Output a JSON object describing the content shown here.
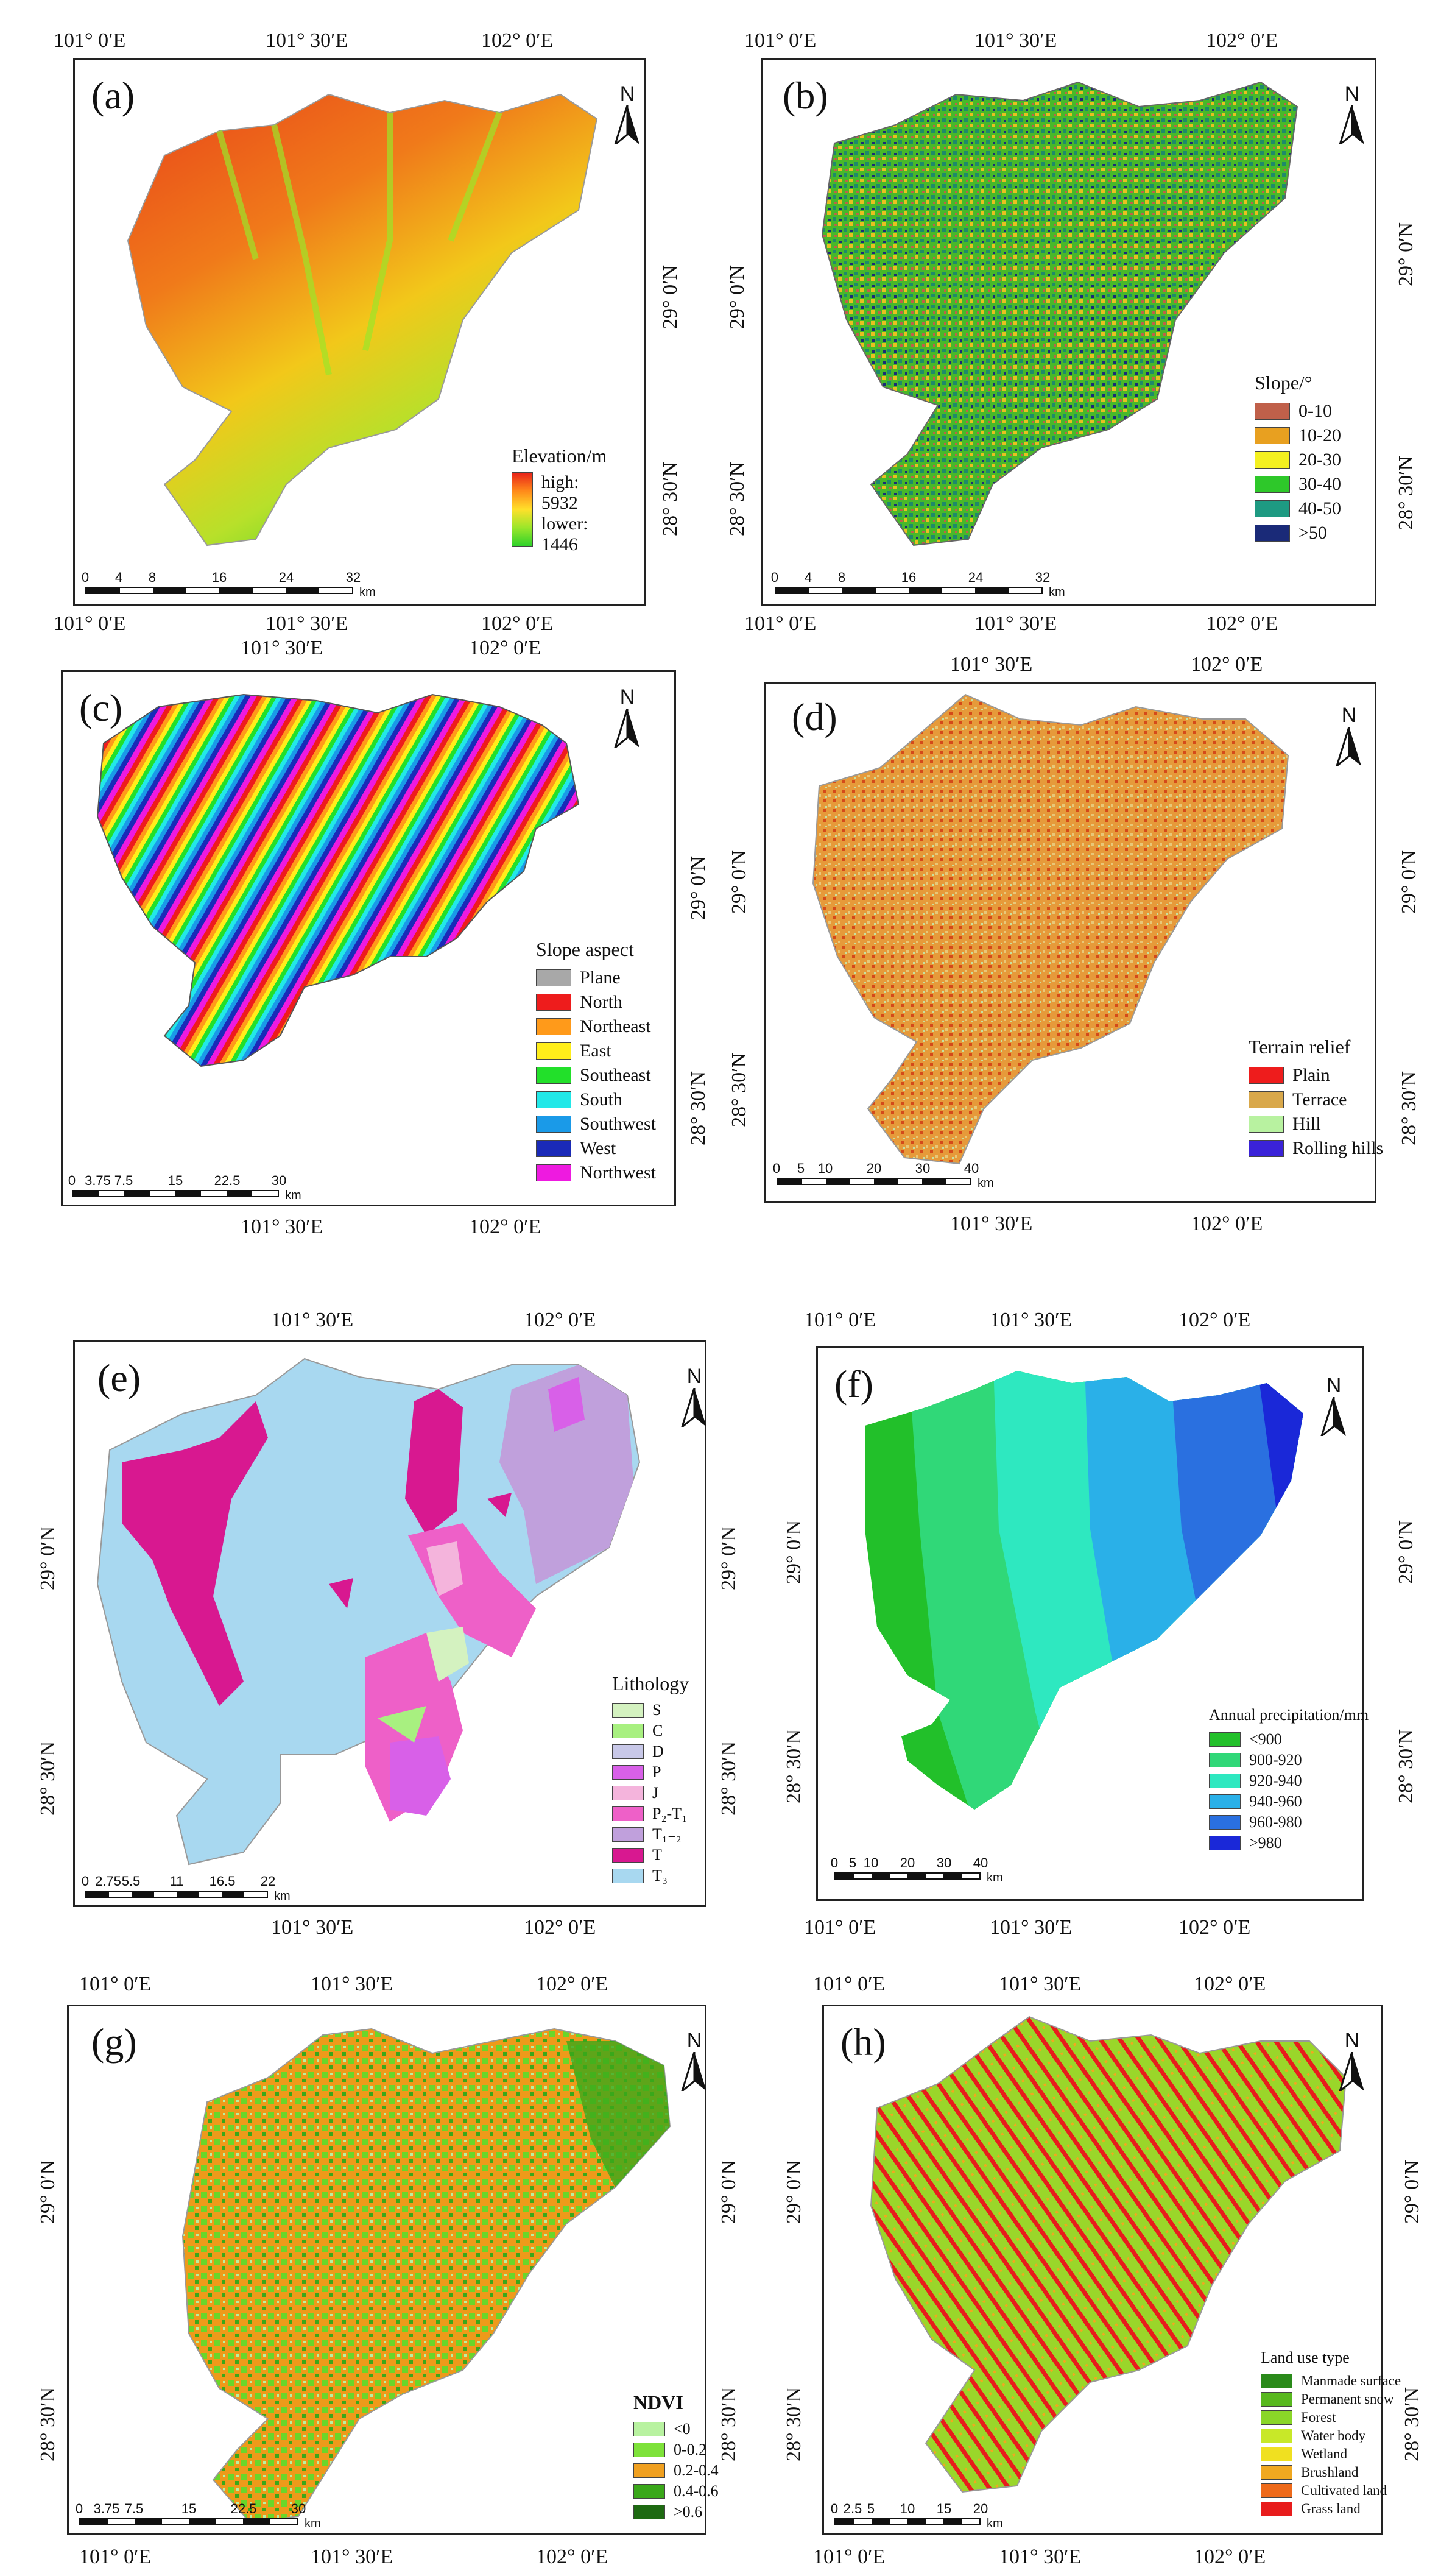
{
  "north_label": "N",
  "panels": [
    {
      "id": "a",
      "label": "(a)",
      "top_coords": [
        "101° 0′E",
        "101° 30′E",
        "102° 0′E"
      ],
      "bottom_coords": [
        "101° 0′E",
        "101° 30′E",
        "102° 0′E"
      ],
      "right_coords": [
        "29° 0′N",
        "28° 30′N"
      ],
      "legend": {
        "title": "Elevation/m",
        "high": "high: 5932",
        "low": "lower: 1446"
      },
      "scale": [
        "0",
        "4",
        "8",
        "16",
        "24",
        "32"
      ],
      "scale_unit": "km"
    },
    {
      "id": "b",
      "label": "(b)",
      "top_coords": [
        "101° 0′E",
        "101° 30′E",
        "102° 0′E"
      ],
      "bottom_coords": [
        "101° 0′E",
        "101° 30′E",
        "102° 0′E"
      ],
      "left_coords": [
        "29° 0′N",
        "28° 30′N"
      ],
      "right_coords": [
        "29° 0′N",
        "28° 30′N"
      ],
      "legend": {
        "title": "Slope/°",
        "items": [
          {
            "label": "0-10",
            "color": "#c0604a"
          },
          {
            "label": "10-20",
            "color": "#e8a020"
          },
          {
            "label": "20-30",
            "color": "#f4f020"
          },
          {
            "label": "30-40",
            "color": "#2ec82a"
          },
          {
            "label": "40-50",
            "color": "#1e9a82"
          },
          {
            "label": ">50",
            "color": "#1a2a78"
          }
        ]
      },
      "scale": [
        "0",
        "4",
        "8",
        "16",
        "24",
        "32"
      ],
      "scale_unit": "km"
    },
    {
      "id": "c",
      "label": "(c)",
      "top_coords": [
        "101° 30′E",
        "102° 0′E"
      ],
      "bottom_coords": [
        "101° 30′E",
        "102° 0′E"
      ],
      "right_coords": [
        "29° 0′N",
        "28° 30′N"
      ],
      "legend": {
        "title": "Slope aspect",
        "items": [
          {
            "label": "Plane",
            "color": "#a8a8a8"
          },
          {
            "label": "North",
            "color": "#ee1c1c"
          },
          {
            "label": "Northeast",
            "color": "#ff9a1a"
          },
          {
            "label": "East",
            "color": "#ffee1a"
          },
          {
            "label": "Southeast",
            "color": "#22e02a"
          },
          {
            "label": "South",
            "color": "#22e8e8"
          },
          {
            "label": "Southwest",
            "color": "#1a9ae8"
          },
          {
            "label": "West",
            "color": "#1a2ab8"
          },
          {
            "label": "Northwest",
            "color": "#ee1ae0"
          }
        ]
      },
      "scale": [
        "0",
        "3.75",
        "7.5",
        "15",
        "22.5",
        "30"
      ],
      "scale_unit": "km"
    },
    {
      "id": "d",
      "label": "(d)",
      "top_coords": [
        "101° 30′E",
        "102° 0′E"
      ],
      "bottom_coords": [
        "101° 30′E",
        "102° 0′E"
      ],
      "left_coords": [
        "29° 0′N",
        "28° 30′N"
      ],
      "right_coords": [
        "29° 0′N",
        "28° 30′N"
      ],
      "legend": {
        "title": "Terrain relief",
        "items": [
          {
            "label": "Plain",
            "color": "#ee1c1c"
          },
          {
            "label": "Terrace",
            "color": "#d9a84a"
          },
          {
            "label": "Hill",
            "color": "#b8f2a0"
          },
          {
            "label": "Rolling hills",
            "color": "#3a22d8"
          }
        ]
      },
      "scale": [
        "0",
        "5",
        "10",
        "20",
        "30",
        "40"
      ],
      "scale_unit": "km"
    },
    {
      "id": "e",
      "label": "(e)",
      "top_coords": [
        "101° 30′E",
        "102° 0′E"
      ],
      "bottom_coords": [
        "101° 30′E",
        "102° 0′E"
      ],
      "left_coords": [
        "29° 0′N",
        "28° 30′N"
      ],
      "right_coords": [
        "29° 0′N",
        "28° 30′N"
      ],
      "legend": {
        "title": "Lithology",
        "items": [
          {
            "label": "S",
            "color": "#d4f2c0"
          },
          {
            "label": "C",
            "color": "#a8f080"
          },
          {
            "label": "D",
            "color": "#c8c8e8"
          },
          {
            "label": "P",
            "color": "#d860e8"
          },
          {
            "label": "J",
            "color": "#f4b4dc"
          },
          {
            "label": "P₂-T₁",
            "color": "#ee60c8"
          },
          {
            "label": "T₁₋₂",
            "color": "#c0a0dc"
          },
          {
            "label": "T",
            "color": "#d81890"
          },
          {
            "label": "T₃",
            "color": "#a8d8f0"
          }
        ]
      },
      "scale": [
        "0",
        "2.75",
        "5.5",
        "11",
        "16.5",
        "22"
      ],
      "scale_unit": "km"
    },
    {
      "id": "f",
      "label": "(f)",
      "top_coords": [
        "101° 0′E",
        "101° 30′E",
        "102° 0′E"
      ],
      "bottom_coords": [
        "101° 0′E",
        "101° 30′E",
        "102° 0′E"
      ],
      "left_coords": [
        "29° 0′N",
        "28° 30′N"
      ],
      "right_coords": [
        "29° 0′N",
        "28° 30′N"
      ],
      "legend": {
        "title": "Annual precipitation/mm",
        "items": [
          {
            "label": "<900",
            "color": "#22c02a"
          },
          {
            "label": "900-920",
            "color": "#30d878"
          },
          {
            "label": "920-940",
            "color": "#2ee8c0"
          },
          {
            "label": "940-960",
            "color": "#2ab0e8"
          },
          {
            "label": "960-980",
            "color": "#2a70e0"
          },
          {
            "label": ">980",
            "color": "#1a28d8"
          }
        ]
      },
      "scale": [
        "0",
        "5",
        "10",
        "20",
        "30",
        "40"
      ],
      "scale_unit": "km"
    },
    {
      "id": "g",
      "label": "(g)",
      "top_coords": [
        "101° 0′E",
        "101° 30′E",
        "102° 0′E"
      ],
      "bottom_coords": [
        "101° 0′E",
        "101° 30′E",
        "102° 0′E"
      ],
      "left_coords": [
        "29° 0′N",
        "28° 30′N"
      ],
      "right_coords": [
        "29° 0′N",
        "28° 30′N"
      ],
      "legend": {
        "title": "NDVI",
        "items": [
          {
            "label": "<0",
            "color": "#b8f2a0"
          },
          {
            "label": "0-0.2",
            "color": "#7ee23a"
          },
          {
            "label": "0.2-0.4",
            "color": "#f0a020"
          },
          {
            "label": "0.4-0.6",
            "color": "#3aa81a"
          },
          {
            "label": ">0.6",
            "color": "#1e6a12"
          }
        ]
      },
      "scale": [
        "0",
        "3.75",
        "7.5",
        "15",
        "22.5",
        "30"
      ],
      "scale_unit": "km"
    },
    {
      "id": "h",
      "label": "(h)",
      "top_coords": [
        "101° 0′E",
        "101° 30′E",
        "102° 0′E"
      ],
      "bottom_coords": [
        "101° 0′E",
        "101° 30′E",
        "102° 0′E"
      ],
      "left_coords": [
        "29° 0′N",
        "28° 30′N"
      ],
      "right_coords": [
        "29° 0′N",
        "28° 30′N"
      ],
      "legend": {
        "title": "Land use type",
        "items": [
          {
            "label": "Manmade surface",
            "color": "#2a8a1a"
          },
          {
            "label": "Permanent snow",
            "color": "#58b81e"
          },
          {
            "label": "Forest",
            "color": "#8ad628"
          },
          {
            "label": "Water body",
            "color": "#c8e828"
          },
          {
            "label": "Wetland",
            "color": "#f0e020"
          },
          {
            "label": "Brushland",
            "color": "#f0a820"
          },
          {
            "label": "Cultivated land",
            "color": "#ee6a1a"
          },
          {
            "label": "Grass land",
            "color": "#e81c1c"
          }
        ]
      },
      "scale": [
        "0",
        "2.5",
        "5",
        "10",
        "15",
        "20"
      ],
      "scale_unit": "km"
    }
  ]
}
